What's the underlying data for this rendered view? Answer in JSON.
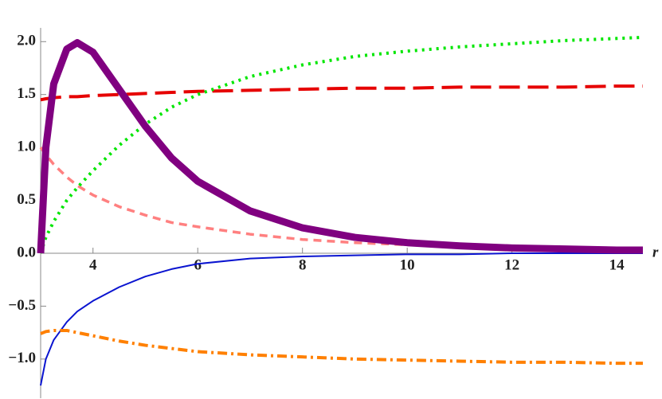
{
  "chart_data": {
    "type": "line",
    "x_label": "r",
    "x": [
      3,
      3.1,
      3.25,
      3.5,
      3.7,
      4,
      4.5,
      5,
      5.5,
      6,
      7,
      8,
      9,
      10,
      11,
      12,
      13,
      14,
      14.5
    ],
    "xlim": [
      3,
      14.5
    ],
    "xticks": [
      4,
      6,
      8,
      10,
      12,
      14
    ],
    "ylim": [
      -1.37,
      2.13
    ],
    "yticks": [
      {
        "value": -1,
        "label": "−1.0"
      },
      {
        "value": -0.5,
        "label": "−0.5"
      },
      {
        "value": 0,
        "label": "0.0"
      },
      0.5,
      {
        "value": 1,
        "label": "1.0"
      },
      1.5,
      {
        "value": 2,
        "label": "2.0"
      }
    ],
    "series": [
      {
        "color": "#ff8080",
        "style": "dashed",
        "values": [
          1.0,
          0.93,
          0.84,
          0.72,
          0.64,
          0.55,
          0.44,
          0.36,
          0.29,
          0.25,
          0.18,
          0.13,
          0.1,
          0.08,
          0.06,
          0.05,
          0.04,
          0.03,
          0.03
        ]
      },
      {
        "color": "#e60000",
        "style": "longdash",
        "values": [
          1.45,
          1.46,
          1.47,
          1.48,
          1.48,
          1.49,
          1.5,
          1.51,
          1.52,
          1.53,
          1.54,
          1.55,
          1.56,
          1.56,
          1.57,
          1.57,
          1.57,
          1.58,
          1.58
        ]
      },
      {
        "color": "#00e600",
        "style": "dotted",
        "values": [
          0,
          0.15,
          0.3,
          0.5,
          0.62,
          0.78,
          1.02,
          1.22,
          1.38,
          1.5,
          1.67,
          1.78,
          1.86,
          1.91,
          1.95,
          1.98,
          2.01,
          2.03,
          2.04
        ]
      },
      {
        "color": "#0a14d0",
        "style": "solid",
        "values": [
          -1.25,
          -1.0,
          -0.82,
          -0.65,
          -0.55,
          -0.45,
          -0.32,
          -0.22,
          -0.15,
          -0.1,
          -0.05,
          -0.03,
          -0.02,
          -0.01,
          -0.01,
          0,
          0,
          0,
          0
        ]
      },
      {
        "color": "#ff8000",
        "style": "dashdot",
        "values": [
          -0.76,
          -0.74,
          -0.73,
          -0.73,
          -0.75,
          -0.78,
          -0.83,
          -0.87,
          -0.9,
          -0.93,
          -0.96,
          -0.98,
          -1.0,
          -1.01,
          -1.02,
          -1.03,
          -1.03,
          -1.04,
          -1.04
        ]
      },
      {
        "color": "#800080",
        "style": "thick",
        "values": [
          0,
          1.0,
          1.6,
          1.93,
          1.99,
          1.9,
          1.55,
          1.2,
          0.9,
          0.68,
          0.4,
          0.24,
          0.15,
          0.1,
          0.07,
          0.05,
          0.04,
          0.03,
          0.03
        ]
      }
    ]
  }
}
